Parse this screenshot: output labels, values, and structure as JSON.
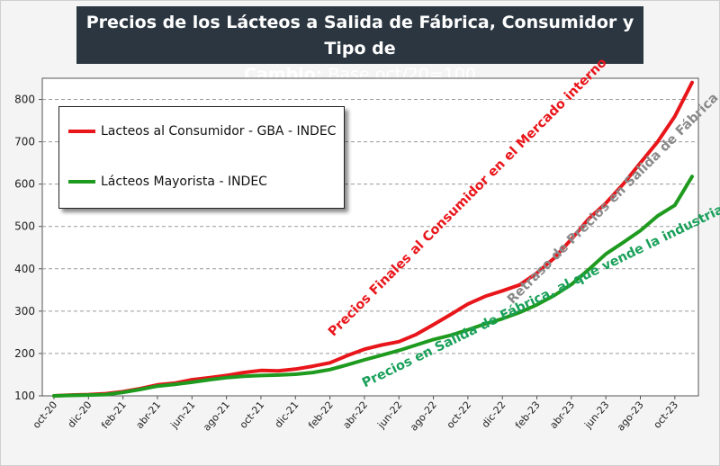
{
  "title": {
    "line1": "Precios de los Lácteos a Salida de Fábrica, Consumidor y Tipo de",
    "line2_bold": "Cambio:",
    "line2_rest": " Base oct/20=100"
  },
  "legend": [
    {
      "label": "Lacteos al Consumidor - GBA - INDEC",
      "color": "#e8161b"
    },
    {
      "label": "Lácteos Mayorista - INDEC",
      "color": "#1e9a1e"
    }
  ],
  "annotations": {
    "red": {
      "text": "Precios Finales al Consumidor en el Mercado interno",
      "color": "#e8161b"
    },
    "gray": {
      "text": "Retraso de Precios en Salida de Fábrica",
      "color": "#8a8a8a"
    },
    "green": {
      "text": "Precios en Salida de Fábrica, al que vende la industria",
      "color": "#1aa05a"
    }
  },
  "chart_data": {
    "type": "line",
    "x": [
      "oct-20",
      "nov-20",
      "dic-20",
      "ene-21",
      "feb-21",
      "mar-21",
      "abr-21",
      "may-21",
      "jun-21",
      "jul-21",
      "ago-21",
      "sept-21",
      "oct-21",
      "nov-21",
      "dic-21",
      "ene-22",
      "feb-22",
      "mar-22",
      "abr-22",
      "may-22",
      "jun-22",
      "jul-22",
      "ago-22",
      "sept-22",
      "oct-22",
      "nov-22",
      "dic-22",
      "ene-23",
      "feb-23",
      "mar-23",
      "abr-23",
      "may-23",
      "jun-23",
      "jul-23",
      "ago-23",
      "sept-23",
      "oct-23",
      "nov-23"
    ],
    "xticks": [
      "oct-20",
      "dic-20",
      "feb-21",
      "abr-21",
      "jun-21",
      "ago-21",
      "oct-21",
      "dic-21",
      "feb-22",
      "abr-22",
      "jun-22",
      "ago-22",
      "oct-22",
      "dic-22",
      "feb-23",
      "abr-23",
      "jun-23",
      "ago-23",
      "oct-23"
    ],
    "series": [
      {
        "name": "Lacteos al Consumidor - GBA - INDEC",
        "color": "#e8161b",
        "values": [
          100,
          102,
          103,
          105,
          110,
          117,
          126,
          130,
          138,
          143,
          148,
          155,
          160,
          159,
          163,
          170,
          178,
          195,
          210,
          220,
          228,
          245,
          268,
          292,
          317,
          335,
          348,
          362,
          390,
          425,
          470,
          518,
          555,
          600,
          650,
          700,
          760,
          840
        ]
      },
      {
        "name": "Lácteos Mayorista - INDEC",
        "color": "#1e9a1e",
        "values": [
          100,
          101,
          102,
          103,
          108,
          115,
          123,
          127,
          132,
          138,
          143,
          146,
          148,
          149,
          151,
          155,
          162,
          173,
          185,
          196,
          207,
          220,
          233,
          243,
          256,
          270,
          282,
          297,
          315,
          337,
          363,
          398,
          435,
          462,
          490,
          525,
          550,
          618
        ]
      }
    ],
    "ylim": [
      100,
      850
    ],
    "yticks": [
      100,
      200,
      300,
      400,
      500,
      600,
      700,
      800
    ],
    "grid": true,
    "legend_position": "top-left"
  }
}
